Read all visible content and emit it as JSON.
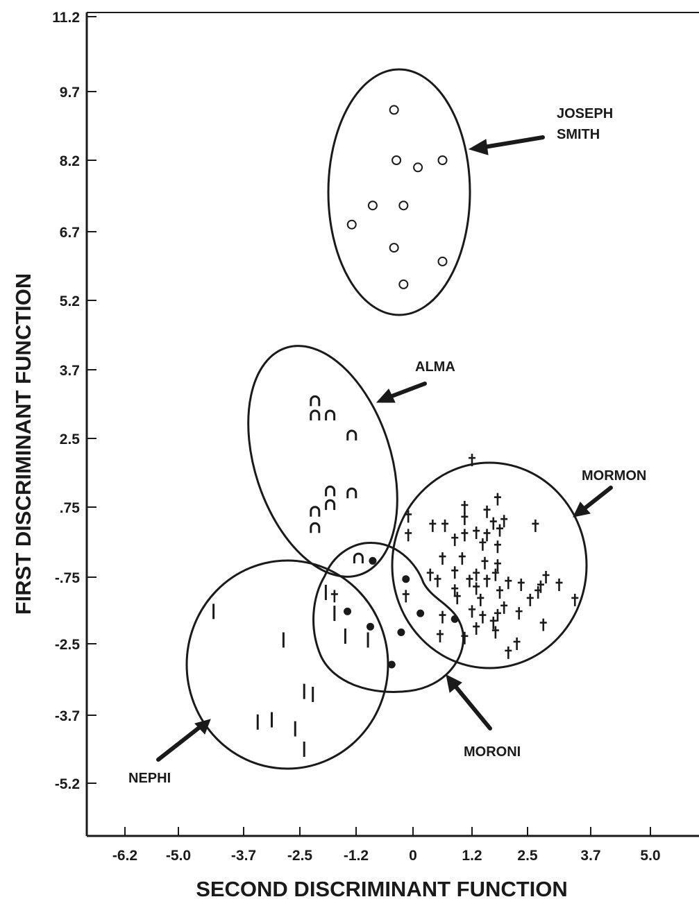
{
  "chart_data": {
    "type": "scatter",
    "xlabel": "SECOND DISCRIMINANT FUNCTION",
    "ylabel": "FIRST DISCRIMINANT FUNCTION",
    "x_ticks": [
      "-6.2",
      "-5.0",
      "-3.7",
      "-2.5",
      "-1.2",
      "0",
      "1.2",
      "2.5",
      "3.7",
      "5.0"
    ],
    "y_ticks": [
      "11.2",
      "9.7",
      "8.2",
      "6.7",
      "5.2",
      "3.7",
      "2.5",
      ".75",
      "-.75",
      "-2.5",
      "-3.7",
      "-5.2"
    ],
    "groups": [
      {
        "label": "JOSEPH SMITH",
        "marker": "open-circle",
        "points": [
          [
            -0.4,
            9.3
          ],
          [
            -0.35,
            8.2
          ],
          [
            0.1,
            8.05
          ],
          [
            0.6,
            8.2
          ],
          [
            -0.85,
            7.25
          ],
          [
            -0.2,
            7.25
          ],
          [
            -1.3,
            6.85
          ],
          [
            -0.4,
            6.35
          ],
          [
            0.6,
            6.05
          ],
          [
            -0.2,
            5.55
          ]
        ]
      },
      {
        "label": "ALMA",
        "marker": "n",
        "points": [
          [
            -2.15,
            3.15
          ],
          [
            -2.15,
            2.9
          ],
          [
            -1.8,
            2.9
          ],
          [
            -1.3,
            2.55
          ],
          [
            -1.8,
            1.15
          ],
          [
            -1.3,
            1.1
          ],
          [
            -1.8,
            0.8
          ],
          [
            -2.15,
            0.65
          ],
          [
            -2.15,
            0.3
          ],
          [
            -1.15,
            -0.35
          ]
        ]
      },
      {
        "label": "MORONI",
        "marker": "filled-circle",
        "points": [
          [
            -0.85,
            -0.4
          ],
          [
            -0.15,
            -0.8
          ],
          [
            -1.4,
            -1.65
          ],
          [
            -0.9,
            -2.05
          ],
          [
            0.15,
            -1.7
          ],
          [
            0.85,
            -1.85
          ],
          [
            -0.25,
            -2.2
          ],
          [
            -0.45,
            -2.85
          ]
        ]
      },
      {
        "label": "NEPHI",
        "marker": "bar",
        "points": [
          [
            -4.3,
            -1.65
          ],
          [
            -2.85,
            -2.4
          ],
          [
            -2.4,
            -3.3
          ],
          [
            -2.2,
            -3.35
          ],
          [
            -3.4,
            -3.85
          ],
          [
            -3.1,
            -3.8
          ],
          [
            -2.6,
            -4.0
          ],
          [
            -2.4,
            -4.45
          ],
          [
            -1.9,
            -1.15
          ],
          [
            -1.7,
            -1.7
          ],
          [
            -1.45,
            -2.3
          ],
          [
            -0.95,
            -2.4
          ]
        ]
      },
      {
        "label": "MORMON",
        "marker": "dagger",
        "points": [
          [
            1.2,
            1.95
          ],
          [
            1.8,
            0.95
          ],
          [
            1.05,
            0.75
          ],
          [
            1.55,
            0.65
          ],
          [
            -0.1,
            0.55
          ],
          [
            1.05,
            0.5
          ],
          [
            1.7,
            0.4
          ],
          [
            1.95,
            0.45
          ],
          [
            2.65,
            0.35
          ],
          [
            0.4,
            0.35
          ],
          [
            0.65,
            0.35
          ],
          [
            1.3,
            0.2
          ],
          [
            1.55,
            0.15
          ],
          [
            1.85,
            0.25
          ],
          [
            -0.1,
            0.15
          ],
          [
            0.85,
            0.05
          ],
          [
            1.05,
            0.15
          ],
          [
            1.45,
            -0.05
          ],
          [
            1.8,
            -0.1
          ],
          [
            0.6,
            -0.35
          ],
          [
            1.0,
            -0.35
          ],
          [
            1.5,
            -0.45
          ],
          [
            1.8,
            -0.5
          ],
          [
            0.35,
            -0.7
          ],
          [
            0.85,
            -0.65
          ],
          [
            1.3,
            -0.7
          ],
          [
            1.75,
            -0.7
          ],
          [
            2.85,
            -0.75
          ],
          [
            0.5,
            -0.85
          ],
          [
            1.15,
            -0.85
          ],
          [
            1.55,
            -0.85
          ],
          [
            2.05,
            -0.9
          ],
          [
            2.35,
            -0.95
          ],
          [
            2.75,
            -1.0
          ],
          [
            3.1,
            -0.95
          ],
          [
            0.85,
            -1.1
          ],
          [
            1.3,
            -1.05
          ],
          [
            1.85,
            -1.15
          ],
          [
            2.7,
            -1.15
          ],
          [
            -0.15,
            -1.25
          ],
          [
            0.9,
            -1.3
          ],
          [
            1.4,
            -1.35
          ],
          [
            2.55,
            -1.35
          ],
          [
            3.4,
            -1.35
          ],
          [
            -1.7,
            -1.25
          ],
          [
            1.2,
            -1.65
          ],
          [
            1.95,
            -1.55
          ],
          [
            2.3,
            -1.7
          ],
          [
            0.6,
            -1.8
          ],
          [
            1.45,
            -1.8
          ],
          [
            1.8,
            -1.75
          ],
          [
            1.7,
            -1.95
          ],
          [
            1.3,
            -2.1
          ],
          [
            2.8,
            -2.0
          ],
          [
            1.75,
            -2.2
          ],
          [
            0.55,
            -2.3
          ],
          [
            1.05,
            -2.35
          ],
          [
            2.25,
            -2.5
          ],
          [
            2.05,
            -2.65
          ]
        ]
      }
    ]
  }
}
